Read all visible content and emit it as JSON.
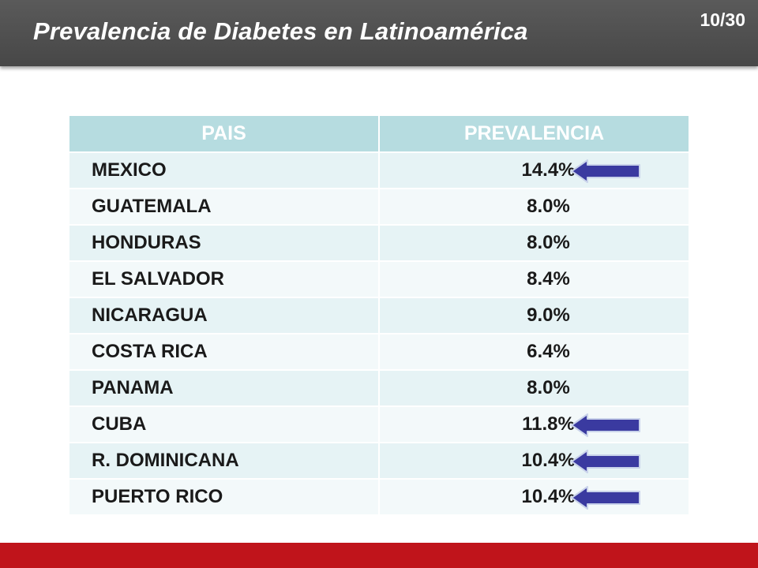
{
  "header": {
    "title": "Prevalencia de Diabetes en Latinoamérica",
    "slide_number": "10/30"
  },
  "table": {
    "columns": [
      "PAIS",
      "PREVALENCIA"
    ],
    "rows": [
      {
        "country": "MEXICO",
        "prevalence": "14.4%",
        "highlighted": true
      },
      {
        "country": "GUATEMALA",
        "prevalence": "8.0%",
        "highlighted": false
      },
      {
        "country": "HONDURAS",
        "prevalence": "8.0%",
        "highlighted": false
      },
      {
        "country": "EL SALVADOR",
        "prevalence": "8.4%",
        "highlighted": false
      },
      {
        "country": "NICARAGUA",
        "prevalence": "9.0%",
        "highlighted": false
      },
      {
        "country": "COSTA RICA",
        "prevalence": "6.4%",
        "highlighted": false
      },
      {
        "country": "PANAMA",
        "prevalence": "8.0%",
        "highlighted": false
      },
      {
        "country": "CUBA",
        "prevalence": "11.8%",
        "highlighted": true
      },
      {
        "country": "R. DOMINICANA",
        "prevalence": "10.4%",
        "highlighted": true
      },
      {
        "country": "PUERTO RICO",
        "prevalence": "10.4%",
        "highlighted": true
      }
    ]
  },
  "colors": {
    "header_bg": "#4f4f4f",
    "table_header_bg": "#b6dce0",
    "row_odd_bg": "#e6f3f5",
    "row_even_bg": "#f3f9fa",
    "arrow_color": "#3a3aa0",
    "footer_bar": "#c0141b"
  }
}
